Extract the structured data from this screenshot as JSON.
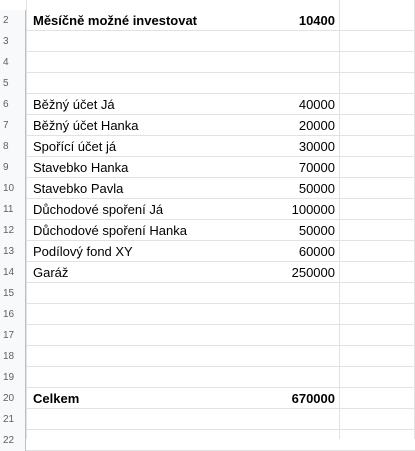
{
  "sheet": {
    "rows": [
      {
        "num": "2",
        "label": "Měsíčně možné investovat",
        "value": "10400",
        "bold": true
      },
      {
        "num": "3",
        "label": "",
        "value": ""
      },
      {
        "num": "4",
        "label": "",
        "value": ""
      },
      {
        "num": "5",
        "label": "",
        "value": ""
      },
      {
        "num": "6",
        "label": "Běžný účet Já",
        "value": "40000"
      },
      {
        "num": "7",
        "label": "Běžný účet Hanka",
        "value": "20000"
      },
      {
        "num": "8",
        "label": "Spořící účet já",
        "value": "30000"
      },
      {
        "num": "9",
        "label": "Stavebko Hanka",
        "value": "70000"
      },
      {
        "num": "10",
        "label": "Stavebko Pavla",
        "value": "50000"
      },
      {
        "num": "11",
        "label": "Důchodové spoření Já",
        "value": "100000"
      },
      {
        "num": "12",
        "label": "Důchodové spoření Hanka",
        "value": "50000"
      },
      {
        "num": "13",
        "label": "Podílový fond XY",
        "value": "60000"
      },
      {
        "num": "14",
        "label": "Garáž",
        "value": "250000"
      },
      {
        "num": "15",
        "label": "",
        "value": ""
      },
      {
        "num": "16",
        "label": "",
        "value": ""
      },
      {
        "num": "17",
        "label": "",
        "value": ""
      },
      {
        "num": "18",
        "label": "",
        "value": ""
      },
      {
        "num": "19",
        "label": "",
        "value": ""
      },
      {
        "num": "20",
        "label": "Celkem",
        "value": "670000",
        "bold": true
      },
      {
        "num": "21",
        "label": "",
        "value": ""
      },
      {
        "num": "22",
        "label": "",
        "value": ""
      }
    ]
  }
}
